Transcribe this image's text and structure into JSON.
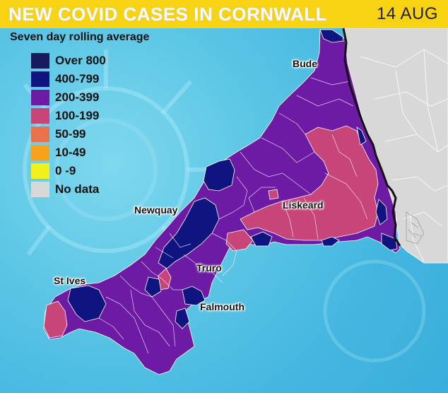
{
  "header": {
    "title": "NEW COVID CASES IN CORNWALL",
    "date": "14 AUG"
  },
  "subtitle": "Seven day rolling average",
  "legend": [
    {
      "label": "Over 800",
      "color": "#181a5e"
    },
    {
      "label": "400-799",
      "color": "#0f1480"
    },
    {
      "label": "200-399",
      "color": "#6d1aa5"
    },
    {
      "label": "100-199",
      "color": "#c8457a"
    },
    {
      "label": "50-99",
      "color": "#e8724c"
    },
    {
      "label": "10-49",
      "color": "#f7a21c"
    },
    {
      "label": "0 -9",
      "color": "#f4f01a"
    },
    {
      "label": "No data",
      "color": "#d8d8d8"
    }
  ],
  "places": {
    "bude": "Bude",
    "newquay": "Newquay",
    "liskeard": "Liskeard",
    "truro": "Truro",
    "st_ives": "St Ives",
    "falmouth": "Falmouth"
  },
  "colors": {
    "header": "#f7d314",
    "sea": "#43b6e0",
    "neighbour": "#d8d8d8"
  }
}
